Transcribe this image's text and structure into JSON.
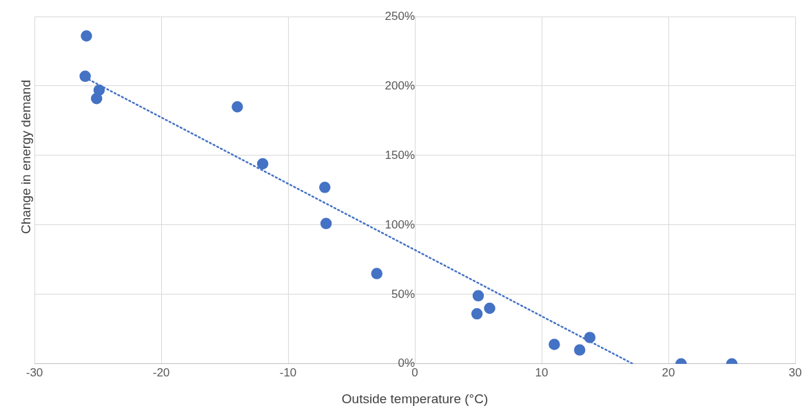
{
  "chart_data": {
    "type": "scatter",
    "xlabel": "Outside temperature (°C)",
    "ylabel": "Change in energy demand",
    "xlim": [
      -30,
      30
    ],
    "xticks": [
      -30,
      -20,
      -10,
      0,
      10,
      20,
      30
    ],
    "ylim": [
      0,
      250
    ],
    "yticks": [
      {
        "value": 0,
        "label": "0%"
      },
      {
        "value": 50,
        "label": "50%"
      },
      {
        "value": 100,
        "label": "100%"
      },
      {
        "value": 150,
        "label": "150%"
      },
      {
        "value": 200,
        "label": "200%"
      },
      {
        "value": 250,
        "label": "250%"
      }
    ],
    "grid": true,
    "legend": false,
    "marker": "circle",
    "series": [
      {
        "color": "#4472c4",
        "x": [
          -25.9,
          -26,
          -24.9,
          -25.1,
          -14,
          -12,
          -7.1,
          -7,
          -3,
          5,
          4.9,
          5.9,
          13.8,
          11,
          13,
          21,
          25
        ],
        "values": [
          236,
          207,
          197,
          191,
          185,
          144,
          127,
          101,
          65,
          49,
          36,
          40,
          19,
          14,
          10,
          0,
          0
        ]
      },
      {
        "type": "line",
        "color": "#4472c4",
        "line_style": "dotted",
        "marker": "none",
        "x": [
          -26,
          17.2
        ],
        "values": [
          206,
          0
        ]
      }
    ]
  }
}
